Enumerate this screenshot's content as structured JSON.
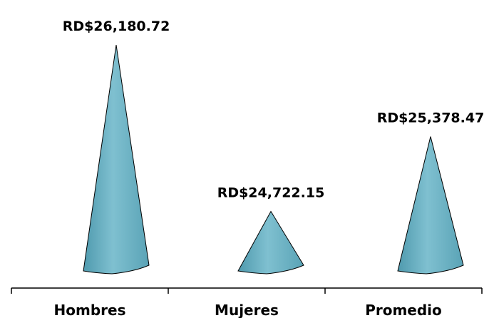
{
  "chart_data": {
    "type": "bar",
    "shape": "cone",
    "categories": [
      "Hombres",
      "Mujeres",
      "Promedio"
    ],
    "values": [
      26180.72,
      24722.15,
      25378.47
    ],
    "data_labels": [
      "RD$26,180.72",
      "RD$24,722.15",
      "RD$25,378.47"
    ],
    "ylim": [
      24200,
      26250
    ],
    "grid": false,
    "legend": "none",
    "title": "",
    "xlabel": "",
    "ylabel": "",
    "colors": {
      "cone_fill": "#6bb0c2",
      "cone_edge": "#000000",
      "axis": "#000000"
    }
  }
}
